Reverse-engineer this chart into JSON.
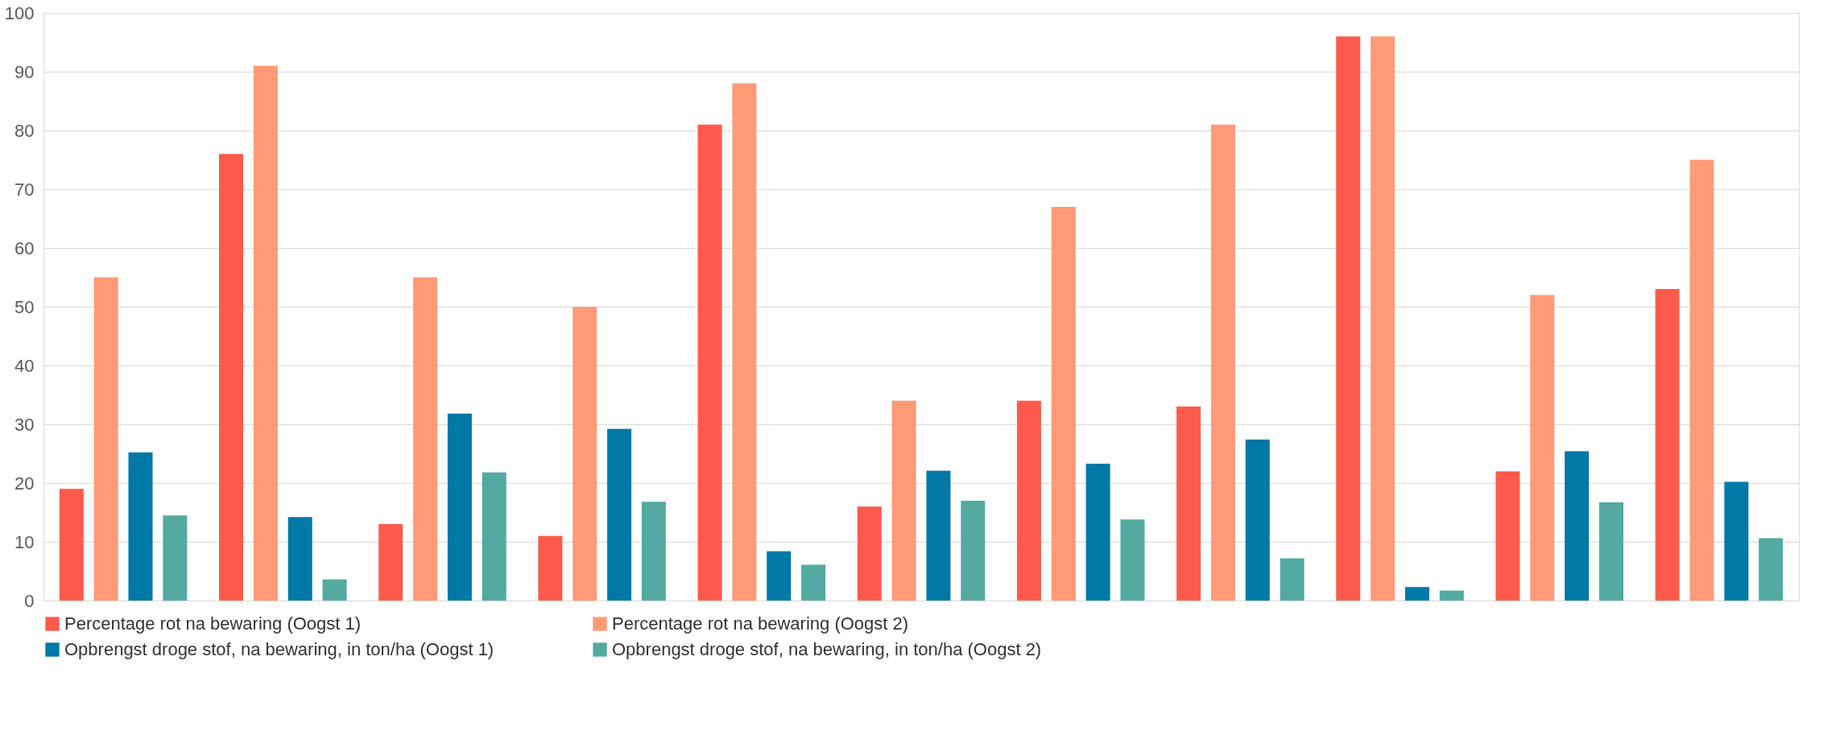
{
  "chart_data": {
    "type": "bar",
    "categories": [
      null,
      null,
      null,
      null,
      null,
      null,
      null,
      null,
      null,
      null,
      null
    ],
    "series": [
      {
        "name": "Percentage rot na bewaring (Oogst 1)",
        "color": "#fe5a4b",
        "values": [
          19,
          76,
          13,
          11,
          81,
          16,
          34,
          33,
          96,
          22,
          53
        ]
      },
      {
        "name": "Percentage rot na bewaring (Oogst 2)",
        "color": "#ff9a77",
        "values": [
          55,
          91,
          55,
          50,
          88,
          34,
          67,
          81,
          96,
          52,
          75
        ]
      },
      {
        "name": "Opbrengst droge stof, na bewaring, in ton/ha (Oogst 1)",
        "color": "#0079a6",
        "values": [
          25.2,
          14.2,
          31.8,
          29.2,
          8.4,
          22.1,
          23.3,
          27.4,
          2.3,
          25.4,
          20.2
        ]
      },
      {
        "name": "Opbrengst droge stof, na bewaring, in ton/ha (Oogst 2)",
        "color": "#52aaa0",
        "values": [
          14.5,
          3.6,
          21.8,
          16.8,
          6.1,
          17.0,
          13.8,
          7.2,
          1.7,
          16.7,
          10.6
        ]
      }
    ],
    "ylim": [
      0,
      100
    ],
    "yticks": [
      0,
      10,
      20,
      30,
      40,
      50,
      60,
      70,
      80,
      90,
      100
    ],
    "grid": "y",
    "legend": "bottom",
    "tick_labels": "y"
  }
}
